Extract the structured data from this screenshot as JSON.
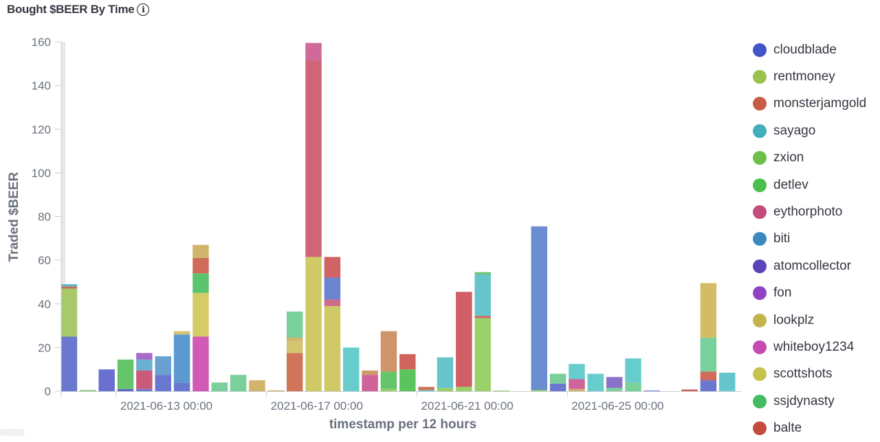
{
  "title": "Bought $BEER By Time",
  "info_icon": "info-icon",
  "chart_data": {
    "type": "bar",
    "stacked": true,
    "xlabel": "timestamp per 12 hours",
    "ylabel": "Traded $BEER",
    "ylim": [
      0,
      160
    ],
    "yticks": [
      0,
      20,
      40,
      60,
      80,
      100,
      120,
      140,
      160
    ],
    "x_start": "2021-06-11 12:00",
    "x_interval_hours": 12,
    "xtick_labels": [
      {
        "label": "2021-06-13 00:00",
        "slot": 3
      },
      {
        "label": "2021-06-17 00:00",
        "slot": 11
      },
      {
        "label": "2021-06-21 00:00",
        "slot": 19
      },
      {
        "label": "2021-06-25 00:00",
        "slot": 27
      }
    ],
    "legend_position": "right",
    "legend": [
      {
        "name": "cloudblade",
        "color": "#4254c8"
      },
      {
        "name": "rentmoney",
        "color": "#99c24d"
      },
      {
        "name": "monsterjamgold",
        "color": "#c75c47"
      },
      {
        "name": "sayago",
        "color": "#3fafbd"
      },
      {
        "name": "zxion",
        "color": "#6cc04a"
      },
      {
        "name": "detlev",
        "color": "#4bc04f"
      },
      {
        "name": "eythorphoto",
        "color": "#c44c7c"
      },
      {
        "name": "biti",
        "color": "#3c88c0"
      },
      {
        "name": "atomcollector",
        "color": "#5c44b8"
      },
      {
        "name": "fon",
        "color": "#8e44c0"
      },
      {
        "name": "lookplz",
        "color": "#c4b44c"
      },
      {
        "name": "whiteboy1234",
        "color": "#c44cb0"
      },
      {
        "name": "scottshots",
        "color": "#c4c44c"
      },
      {
        "name": "ssjdynasty",
        "color": "#44bc64"
      },
      {
        "name": "balte",
        "color": "#c44c3c"
      }
    ],
    "bars": [
      {
        "slot": 0,
        "segments": [
          {
            "value": 25,
            "color": "#6a78d0"
          },
          {
            "value": 22,
            "color": "#a8c86a"
          },
          {
            "value": 1,
            "color": "#cc6a5a"
          },
          {
            "value": 1,
            "color": "#5ab8c8"
          }
        ]
      },
      {
        "slot": 1,
        "segments": [
          {
            "value": 0.6,
            "color": "#98d08a"
          }
        ]
      },
      {
        "slot": 2,
        "segments": [
          {
            "value": 10,
            "color": "#6a70d0"
          }
        ]
      },
      {
        "slot": 3,
        "segments": [
          {
            "value": 1,
            "color": "#5a68c8"
          },
          {
            "value": 13.5,
            "color": "#66c46a"
          }
        ]
      },
      {
        "slot": 4,
        "segments": [
          {
            "value": 1,
            "color": "#6a78d0"
          },
          {
            "value": 8.5,
            "color": "#c95a7a"
          },
          {
            "value": 5,
            "color": "#6ab0d0"
          },
          {
            "value": 3,
            "color": "#a66ac8"
          }
        ]
      },
      {
        "slot": 5,
        "segments": [
          {
            "value": 7.5,
            "color": "#6a78d0"
          },
          {
            "value": 8.5,
            "color": "#6aa0d0"
          }
        ]
      },
      {
        "slot": 6,
        "segments": [
          {
            "value": 4,
            "color": "#6a78d0"
          },
          {
            "value": 22,
            "color": "#5a9ad0"
          },
          {
            "value": 1.5,
            "color": "#d4c470"
          }
        ]
      },
      {
        "slot": 7,
        "segments": [
          {
            "value": 25,
            "color": "#d05ab4"
          },
          {
            "value": 20,
            "color": "#d4cc66"
          },
          {
            "value": 9,
            "color": "#5cc46c"
          },
          {
            "value": 7,
            "color": "#d06a5a"
          },
          {
            "value": 6,
            "color": "#d0b46a"
          }
        ]
      },
      {
        "slot": 8,
        "segments": [
          {
            "value": 4,
            "color": "#7ad09a"
          }
        ]
      },
      {
        "slot": 9,
        "segments": [
          {
            "value": 7.5,
            "color": "#7ad09a"
          }
        ]
      },
      {
        "slot": 10,
        "segments": [
          {
            "value": 5,
            "color": "#d0b46a"
          }
        ]
      },
      {
        "slot": 11,
        "segments": [
          {
            "value": 0.4,
            "color": "#d0b46a"
          }
        ]
      },
      {
        "slot": 12,
        "segments": [
          {
            "value": 17.5,
            "color": "#d0745a"
          },
          {
            "value": 5.5,
            "color": "#d4c470"
          },
          {
            "value": 1.5,
            "color": "#d0b46a"
          },
          {
            "value": 12,
            "color": "#7ad09a"
          }
        ]
      },
      {
        "slot": 13,
        "segments": [
          {
            "value": 61.5,
            "color": "#cfca66"
          },
          {
            "value": 90,
            "color": "#d06478"
          },
          {
            "value": 8,
            "color": "#d06a9a"
          }
        ]
      },
      {
        "slot": 14,
        "segments": [
          {
            "value": 39,
            "color": "#cfca66"
          },
          {
            "value": 3,
            "color": "#cc6a8a"
          },
          {
            "value": 10,
            "color": "#6a84d0"
          },
          {
            "value": 9.5,
            "color": "#d06464"
          }
        ]
      },
      {
        "slot": 15,
        "segments": [
          {
            "value": 20,
            "color": "#66cccc"
          }
        ]
      },
      {
        "slot": 16,
        "segments": [
          {
            "value": 7.5,
            "color": "#d0649a"
          },
          {
            "value": 2,
            "color": "#d09a6a"
          }
        ]
      },
      {
        "slot": 17,
        "segments": [
          {
            "value": 1,
            "color": "#9ad06a"
          },
          {
            "value": 8,
            "color": "#66c46a"
          },
          {
            "value": 18.5,
            "color": "#d0946a"
          }
        ]
      },
      {
        "slot": 18,
        "segments": [
          {
            "value": 10,
            "color": "#5cc45c"
          },
          {
            "value": 7,
            "color": "#d0645c"
          }
        ]
      },
      {
        "slot": 19,
        "segments": [
          {
            "value": 0.5,
            "color": "#66cccc"
          },
          {
            "value": 1.5,
            "color": "#d0745a"
          }
        ]
      },
      {
        "slot": 20,
        "segments": [
          {
            "value": 1.5,
            "color": "#9ad06a"
          },
          {
            "value": 14,
            "color": "#66c4cc"
          }
        ]
      },
      {
        "slot": 21,
        "segments": [
          {
            "value": 2,
            "color": "#9ad06a"
          },
          {
            "value": 43.5,
            "color": "#d05e64"
          }
        ]
      },
      {
        "slot": 22,
        "segments": [
          {
            "value": 33.5,
            "color": "#9ad06a"
          },
          {
            "value": 1,
            "color": "#d06464"
          },
          {
            "value": 19,
            "color": "#66c4cc"
          },
          {
            "value": 1,
            "color": "#66c46a"
          }
        ]
      },
      {
        "slot": 23,
        "segments": [
          {
            "value": 0.3,
            "color": "#9ad06a"
          }
        ]
      },
      {
        "slot": 25,
        "segments": [
          {
            "value": 0.5,
            "color": "#9ad06a"
          },
          {
            "value": 75,
            "color": "#6a8ed0"
          }
        ]
      },
      {
        "slot": 26,
        "segments": [
          {
            "value": 3.5,
            "color": "#6a78d0"
          },
          {
            "value": 4.5,
            "color": "#7ad09a"
          }
        ]
      },
      {
        "slot": 27,
        "segments": [
          {
            "value": 1,
            "color": "#d0b46a"
          },
          {
            "value": 4.5,
            "color": "#d0649a"
          },
          {
            "value": 7,
            "color": "#66cccc"
          }
        ]
      },
      {
        "slot": 28,
        "segments": [
          {
            "value": 8,
            "color": "#66cccc"
          }
        ]
      },
      {
        "slot": 29,
        "segments": [
          {
            "value": 1.5,
            "color": "#7ad09a"
          },
          {
            "value": 5,
            "color": "#8a72c8"
          }
        ]
      },
      {
        "slot": 30,
        "segments": [
          {
            "value": 4,
            "color": "#7ad09a"
          },
          {
            "value": 11,
            "color": "#66cccc"
          }
        ]
      },
      {
        "slot": 31,
        "segments": [
          {
            "value": 0.3,
            "color": "#6a78d0"
          }
        ]
      },
      {
        "slot": 33,
        "segments": [
          {
            "value": 0.8,
            "color": "#d06464"
          }
        ]
      },
      {
        "slot": 34,
        "segments": [
          {
            "value": 5,
            "color": "#6a78d0"
          },
          {
            "value": 4,
            "color": "#d06a5a"
          },
          {
            "value": 15.5,
            "color": "#7ad09a"
          },
          {
            "value": 25,
            "color": "#d4bc66"
          }
        ]
      },
      {
        "slot": 35,
        "segments": [
          {
            "value": 0.5,
            "color": "#66cccc"
          },
          {
            "value": 8,
            "color": "#66c4cc"
          }
        ]
      }
    ]
  }
}
